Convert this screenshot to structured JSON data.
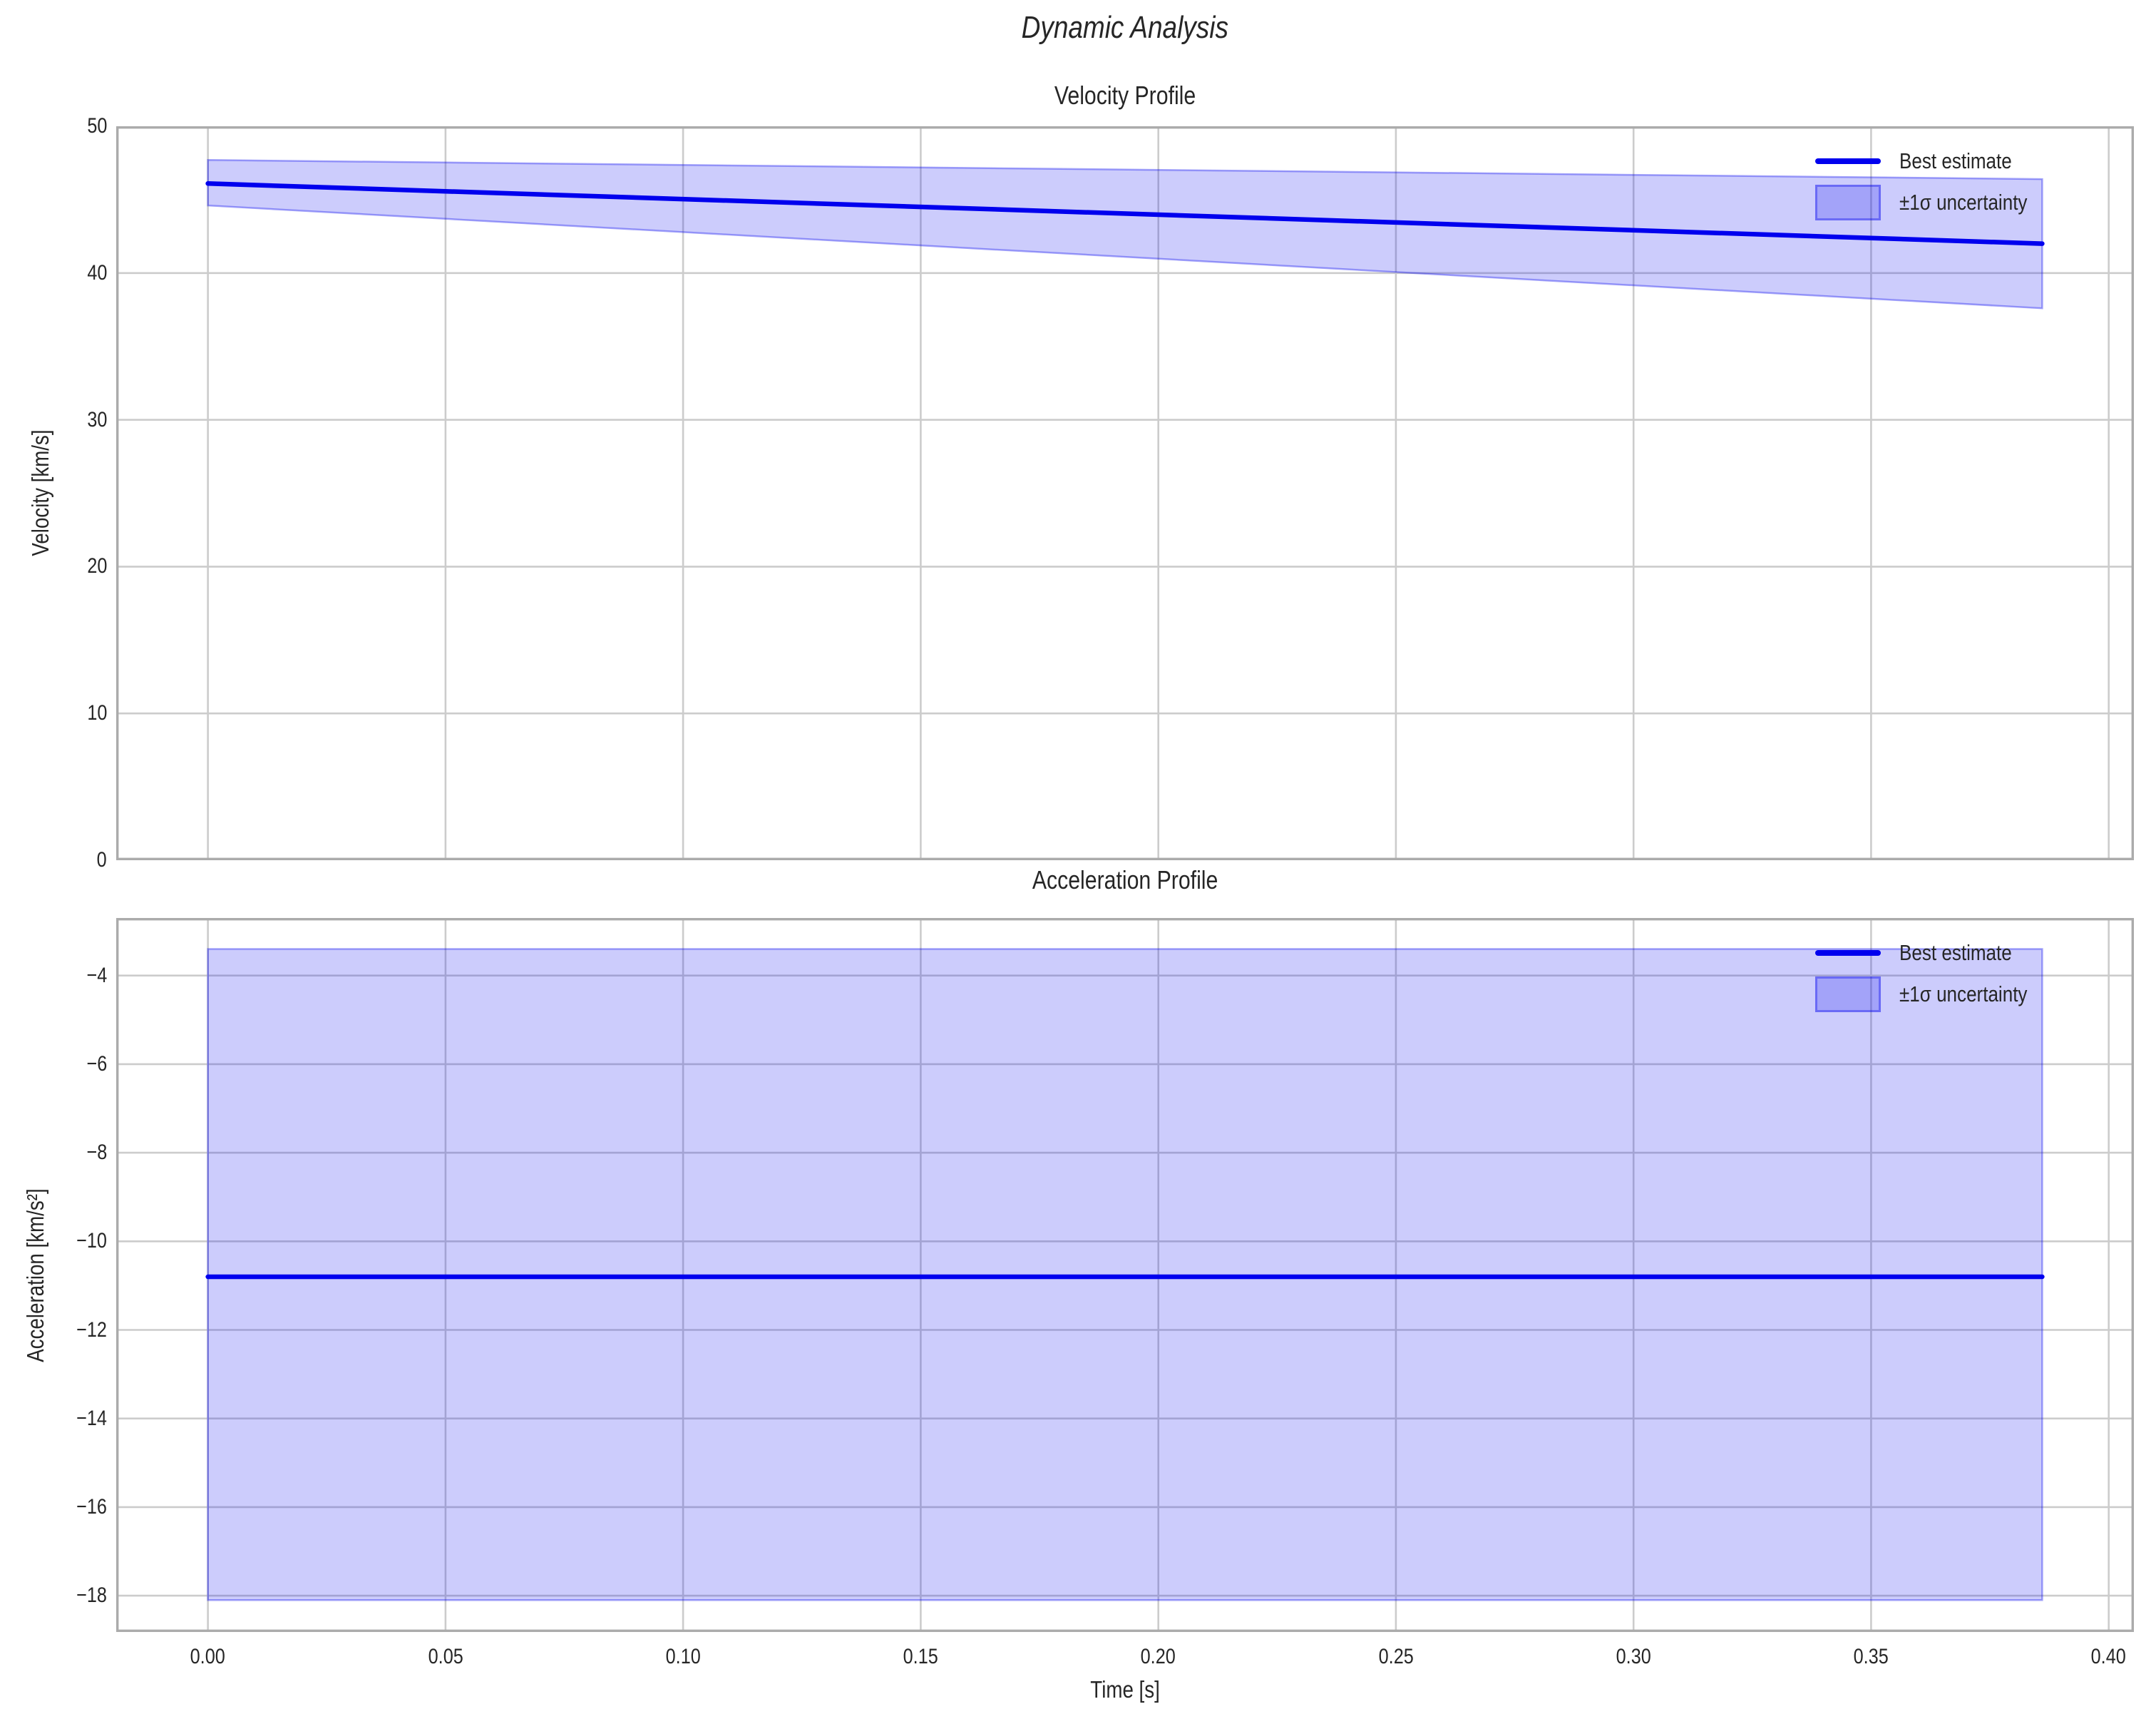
{
  "figure": {
    "title": "Dynamic Analysis",
    "xlabel": "Time [s]"
  },
  "colors": {
    "line": "#0000ee",
    "band_fill": "rgba(0,0,238,0.2)",
    "band_edge": "rgba(0,0,238,0.35)",
    "grid": "#cccccc",
    "spine": "#ababab",
    "text": "#212121"
  },
  "chart_data": [
    {
      "type": "line",
      "title": "Velocity Profile",
      "ylabel": "Velocity [km/s]",
      "x": [
        0,
        0.386
      ],
      "series": [
        {
          "name": "Best estimate",
          "values": [
            46.1,
            42.0
          ]
        },
        {
          "name": "+1 sigma upper bound",
          "values": [
            47.7,
            46.4
          ]
        },
        {
          "name": "-1 sigma lower bound",
          "values": [
            44.6,
            37.6
          ]
        }
      ],
      "xlim": [
        -0.0193,
        0.4053
      ],
      "ylim": [
        0,
        50
      ],
      "xticks": [
        0,
        0.05,
        0.1,
        0.15,
        0.2,
        0.25,
        0.3,
        0.35,
        0.4
      ],
      "xtick_labels": null,
      "yticks": [
        0,
        10,
        20,
        30,
        40,
        50
      ],
      "ytick_labels": [
        "0",
        "10",
        "20",
        "30",
        "40",
        "50"
      ],
      "legend": [
        "Best estimate",
        "±1σ uncertainty"
      ],
      "legend_position": "upper right",
      "grid": true
    },
    {
      "type": "line",
      "title": "Acceleration Profile",
      "ylabel": "Acceleration [km/s²]",
      "x": [
        0,
        0.386
      ],
      "series": [
        {
          "name": "Best estimate",
          "values": [
            -10.8,
            -10.8
          ]
        },
        {
          "name": "+1 sigma upper bound",
          "values": [
            -3.4,
            -3.4
          ]
        },
        {
          "name": "-1 sigma lower bound",
          "values": [
            -18.1,
            -18.1
          ]
        }
      ],
      "xlim": [
        -0.0193,
        0.4053
      ],
      "ylim": [
        -18.82,
        -2.7
      ],
      "xticks": [
        0,
        0.05,
        0.1,
        0.15,
        0.2,
        0.25,
        0.3,
        0.35,
        0.4
      ],
      "xtick_labels": [
        "0.00",
        "0.05",
        "0.10",
        "0.15",
        "0.20",
        "0.25",
        "0.30",
        "0.35",
        "0.40"
      ],
      "yticks": [
        -18,
        -16,
        -14,
        -12,
        -10,
        -8,
        -6,
        -4
      ],
      "ytick_labels": [
        "−18",
        "−16",
        "−14",
        "−12",
        "−10",
        "−8",
        "−6",
        "−4"
      ],
      "legend": [
        "Best estimate",
        "±1σ uncertainty"
      ],
      "legend_position": "upper right",
      "grid": true
    }
  ]
}
